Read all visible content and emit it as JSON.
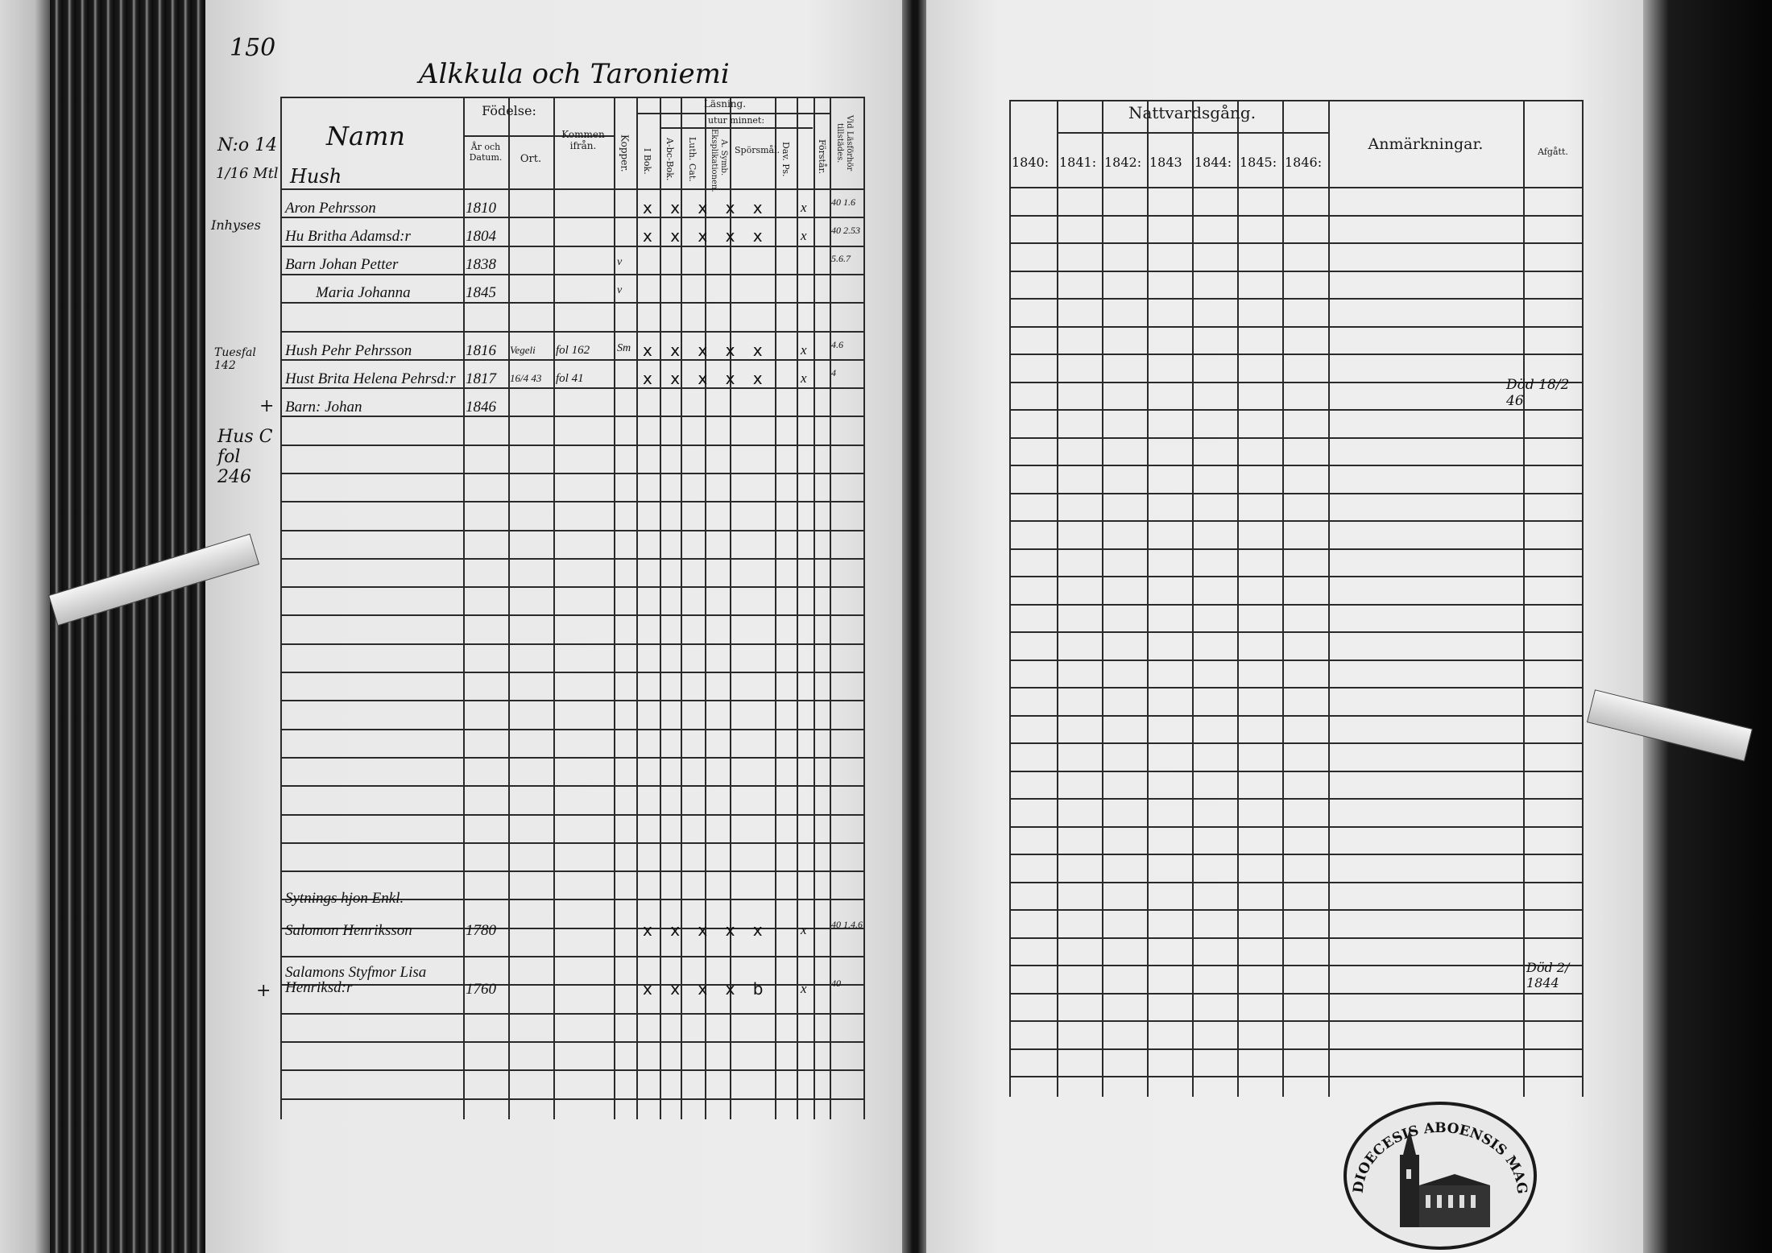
{
  "left_page": {
    "page_number": "150",
    "village_title": "Alkkula och Taroniemi",
    "headers": {
      "name_column": "Namn",
      "fodelse": "Födelse:",
      "ar_och_datum": "År och Datum.",
      "ort": "Ort.",
      "kommen_fran": "Kommen ifrån.",
      "kopper": "Kopper.",
      "lasning": "Läsning.",
      "utur_minnet": "utur minnet:",
      "i_bok": "I Bok.",
      "abc_bok": "A-bc-Bok.",
      "luth_cat": "Luth. Cat.",
      "a_symb": "A. Symb. Eksplikationen.",
      "sporsmal": "Spörsmål.",
      "dav_ps": "Dav. Ps.",
      "forstar": "Förstår.",
      "vid_lasforhor": "Vid Läsförhör tillstädes."
    },
    "margin_notes": [
      "N:o 14",
      "1/16 Mtl",
      "Inhyses",
      "Tuesfal 142",
      "+",
      "Hus C fol 246",
      "+"
    ],
    "section_label": "Hush",
    "entries": [
      {
        "name": "Aron Pehrsson",
        "year": "1810",
        "marks": "x x x x x",
        "forstar": "x",
        "forhor": "40 1.6"
      },
      {
        "name": "Hu Britha Adamsd:r",
        "year": "1804",
        "marks": "x x x x x",
        "forstar": "x",
        "forhor": "40 2.53"
      },
      {
        "name": "Barn Johan Petter",
        "year": "1838",
        "kopper": "v",
        "forhor": "5.6.7"
      },
      {
        "name": "Maria Johanna",
        "year": "1845",
        "kopper": "v"
      },
      {
        "name": "Hush Pehr Pehrsson",
        "year": "1816",
        "ort": "Vegeli",
        "kommen": "fol 162",
        "kopper": "Sm",
        "marks": "x x x x x",
        "forstar": "x",
        "forhor": "4.6"
      },
      {
        "name": "Hust Brita Helena Pehrsd:r",
        "year": "1817",
        "ort": "16/4 43",
        "kommen": "fol 41",
        "marks": "x x x x x",
        "forstar": "x",
        "forhor": "4"
      },
      {
        "name": "Barn: Johan",
        "year": "1846"
      },
      {
        "name": "Sytnings hjon Enkl.",
        "year": ""
      },
      {
        "name": "Salomon Henriksson",
        "year": "1780",
        "marks": "x x x x x",
        "forstar": "x",
        "forhor": "40 1.4.6"
      },
      {
        "name": "Salamons Styfmor Lisa Henriksd:r",
        "year": "1760",
        "marks": "x x x x b",
        "forstar": "x",
        "forhor": "40"
      }
    ]
  },
  "right_page": {
    "headers": {
      "nattvardsgang": "Nattvardsgång.",
      "years": [
        "1840:",
        "1841:",
        "1842:",
        "1843",
        "1844:",
        "1845:",
        "1846:"
      ],
      "anmarkningar": "Anmärkningar.",
      "afgatt": "Afgått."
    },
    "notes": {
      "dod_1": "Död 18/2 46",
      "dod_2": "Död 2/ 1844"
    }
  },
  "seal": {
    "text": "DIOECESIS ABOENSIS MAGNI PRINC. FINL."
  }
}
